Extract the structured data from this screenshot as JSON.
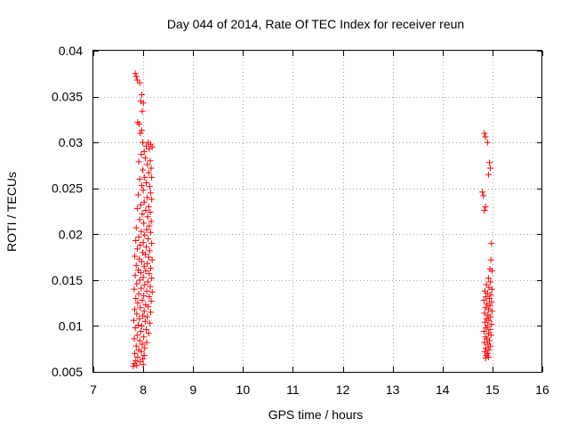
{
  "chart_data": {
    "type": "scatter",
    "title": "Day 044 of 2014, Rate Of TEC Index for receiver reun",
    "xlabel": "GPS time / hours",
    "ylabel": "ROTI / TECUs",
    "xlim": [
      7,
      16
    ],
    "ylim": [
      0.005,
      0.04
    ],
    "xticks": [
      7,
      8,
      9,
      10,
      11,
      12,
      13,
      14,
      15,
      16
    ],
    "xtick_labels": [
      "7",
      "8",
      "9",
      "10",
      "11",
      "12",
      "13",
      "14",
      "15",
      "16"
    ],
    "yticks": [
      0.005,
      0.01,
      0.015,
      0.02,
      0.025,
      0.03,
      0.035,
      0.04
    ],
    "ytick_labels": [
      "0.005",
      "0.01",
      "0.015",
      "0.02",
      "0.025",
      "0.03",
      "0.035",
      "0.04"
    ],
    "grid": true,
    "marker": "plus",
    "color": "#ff0000",
    "series": [
      {
        "name": "ROTI",
        "points": [
          [
            7.84,
            0.0375
          ],
          [
            7.86,
            0.0372
          ],
          [
            7.88,
            0.0368
          ],
          [
            7.93,
            0.0365
          ],
          [
            7.97,
            0.0352
          ],
          [
            8.0,
            0.0343
          ],
          [
            7.95,
            0.0345
          ],
          [
            7.98,
            0.0334
          ],
          [
            7.92,
            0.032
          ],
          [
            7.89,
            0.0322
          ],
          [
            7.97,
            0.0313
          ],
          [
            7.94,
            0.031
          ],
          [
            7.99,
            0.03
          ],
          [
            8.1,
            0.03
          ],
          [
            8.15,
            0.0298
          ],
          [
            8.06,
            0.0296
          ],
          [
            8.12,
            0.0293
          ],
          [
            8.02,
            0.029
          ],
          [
            8.18,
            0.0295
          ],
          [
            7.96,
            0.0287
          ],
          [
            8.04,
            0.0283
          ],
          [
            8.14,
            0.028
          ],
          [
            7.91,
            0.0279
          ],
          [
            8.08,
            0.0276
          ],
          [
            8.16,
            0.0272
          ],
          [
            7.99,
            0.027
          ],
          [
            8.11,
            0.0267
          ],
          [
            8.03,
            0.0262
          ],
          [
            8.17,
            0.0262
          ],
          [
            7.93,
            0.026
          ],
          [
            8.06,
            0.0256
          ],
          [
            7.97,
            0.0253
          ],
          [
            8.13,
            0.0252
          ],
          [
            8.0,
            0.0248
          ],
          [
            8.15,
            0.0245
          ],
          [
            7.9,
            0.0243
          ],
          [
            8.08,
            0.024
          ],
          [
            8.17,
            0.0238
          ],
          [
            8.02,
            0.0235
          ],
          [
            7.95,
            0.0232
          ],
          [
            8.11,
            0.023
          ],
          [
            7.88,
            0.0228
          ],
          [
            8.05,
            0.0226
          ],
          [
            8.14,
            0.0224
          ],
          [
            7.98,
            0.0222
          ],
          [
            8.09,
            0.0219
          ],
          [
            7.93,
            0.0216
          ],
          [
            8.16,
            0.0214
          ],
          [
            8.01,
            0.0212
          ],
          [
            8.12,
            0.0209
          ],
          [
            7.86,
            0.0207
          ],
          [
            8.07,
            0.0205
          ],
          [
            7.96,
            0.0203
          ],
          [
            8.15,
            0.0202
          ],
          [
            8.03,
            0.0199
          ],
          [
            7.91,
            0.0197
          ],
          [
            8.1,
            0.0195
          ],
          [
            7.85,
            0.0193
          ],
          [
            8.0,
            0.0191
          ],
          [
            8.17,
            0.019
          ],
          [
            7.94,
            0.0188
          ],
          [
            8.06,
            0.0186
          ],
          [
            7.88,
            0.0184
          ],
          [
            8.13,
            0.0182
          ],
          [
            7.99,
            0.018
          ],
          [
            8.04,
            0.0178
          ],
          [
            7.83,
            0.0176
          ],
          [
            8.11,
            0.0175
          ],
          [
            7.92,
            0.0173
          ],
          [
            8.18,
            0.0172
          ],
          [
            7.97,
            0.017
          ],
          [
            8.08,
            0.0168
          ],
          [
            7.86,
            0.0166
          ],
          [
            8.02,
            0.0165
          ],
          [
            8.15,
            0.0163
          ],
          [
            7.9,
            0.0161
          ],
          [
            8.05,
            0.016
          ],
          [
            7.95,
            0.0158
          ],
          [
            8.12,
            0.0157
          ],
          [
            7.84,
            0.0155
          ],
          [
            8.0,
            0.0153
          ],
          [
            8.17,
            0.0152
          ],
          [
            7.93,
            0.015
          ],
          [
            8.09,
            0.0148
          ],
          [
            7.87,
            0.0146
          ],
          [
            8.03,
            0.0145
          ],
          [
            8.14,
            0.0143
          ],
          [
            7.96,
            0.0141
          ],
          [
            7.82,
            0.014
          ],
          [
            8.07,
            0.0138
          ],
          [
            8.18,
            0.0137
          ],
          [
            7.91,
            0.0135
          ],
          [
            8.01,
            0.0133
          ],
          [
            8.12,
            0.0132
          ],
          [
            7.85,
            0.013
          ],
          [
            7.98,
            0.0128
          ],
          [
            8.16,
            0.0127
          ],
          [
            7.89,
            0.0125
          ],
          [
            8.05,
            0.0123
          ],
          [
            8.1,
            0.0121
          ],
          [
            7.94,
            0.012
          ],
          [
            7.83,
            0.0118
          ],
          [
            8.02,
            0.0116
          ],
          [
            8.15,
            0.0115
          ],
          [
            7.87,
            0.0113
          ],
          [
            7.99,
            0.0111
          ],
          [
            8.08,
            0.011
          ],
          [
            7.92,
            0.0108
          ],
          [
            7.81,
            0.0106
          ],
          [
            8.04,
            0.0105
          ],
          [
            8.13,
            0.0103
          ],
          [
            7.9,
            0.0101
          ],
          [
            7.97,
            0.01
          ],
          [
            7.84,
            0.0098
          ],
          [
            8.06,
            0.0096
          ],
          [
            7.95,
            0.0094
          ],
          [
            8.11,
            0.0092
          ],
          [
            7.88,
            0.009
          ],
          [
            8.01,
            0.0088
          ],
          [
            7.82,
            0.0086
          ],
          [
            7.93,
            0.0084
          ],
          [
            8.07,
            0.0082
          ],
          [
            7.98,
            0.008
          ],
          [
            7.86,
            0.0078
          ],
          [
            8.03,
            0.0076
          ],
          [
            7.91,
            0.0074
          ],
          [
            7.96,
            0.0072
          ],
          [
            7.83,
            0.007
          ],
          [
            8.02,
            0.0068
          ],
          [
            7.89,
            0.0066
          ],
          [
            7.99,
            0.0064
          ],
          [
            7.85,
            0.0062
          ],
          [
            7.94,
            0.0061
          ],
          [
            7.82,
            0.0059
          ],
          [
            8.0,
            0.0058
          ],
          [
            7.87,
            0.0057
          ],
          [
            7.8,
            0.0056
          ],
          [
            14.84,
            0.031
          ],
          [
            14.86,
            0.0306
          ],
          [
            14.9,
            0.03
          ],
          [
            14.94,
            0.0278
          ],
          [
            14.96,
            0.0272
          ],
          [
            14.92,
            0.0265
          ],
          [
            14.8,
            0.0246
          ],
          [
            14.82,
            0.0242
          ],
          [
            14.86,
            0.023
          ],
          [
            14.84,
            0.0226
          ],
          [
            14.98,
            0.019
          ],
          [
            14.97,
            0.0172
          ],
          [
            14.95,
            0.0162
          ],
          [
            14.99,
            0.016
          ],
          [
            14.92,
            0.0152
          ],
          [
            14.96,
            0.0148
          ],
          [
            14.88,
            0.0145
          ],
          [
            14.93,
            0.0142
          ],
          [
            14.99,
            0.014
          ],
          [
            14.85,
            0.0138
          ],
          [
            14.9,
            0.0136
          ],
          [
            14.97,
            0.0134
          ],
          [
            14.87,
            0.0132
          ],
          [
            14.94,
            0.013
          ],
          [
            14.83,
            0.0128
          ],
          [
            14.98,
            0.0126
          ],
          [
            14.89,
            0.0124
          ],
          [
            14.95,
            0.0122
          ],
          [
            14.86,
            0.012
          ],
          [
            14.92,
            0.0118
          ],
          [
            14.99,
            0.0116
          ],
          [
            14.84,
            0.0114
          ],
          [
            14.91,
            0.0112
          ],
          [
            14.96,
            0.011
          ],
          [
            14.88,
            0.0108
          ],
          [
            14.93,
            0.0106
          ],
          [
            14.85,
            0.0104
          ],
          [
            14.98,
            0.0102
          ],
          [
            14.9,
            0.01
          ],
          [
            14.87,
            0.0098
          ],
          [
            14.95,
            0.0096
          ],
          [
            14.83,
            0.0094
          ],
          [
            14.92,
            0.0092
          ],
          [
            14.97,
            0.009
          ],
          [
            14.86,
            0.0088
          ],
          [
            14.89,
            0.0086
          ],
          [
            14.94,
            0.0084
          ],
          [
            14.84,
            0.0082
          ],
          [
            14.91,
            0.008
          ],
          [
            14.96,
            0.0078
          ],
          [
            14.87,
            0.0076
          ],
          [
            14.93,
            0.0074
          ],
          [
            14.85,
            0.0072
          ],
          [
            14.9,
            0.007
          ],
          [
            14.88,
            0.0068
          ],
          [
            14.92,
            0.0066
          ],
          [
            14.86,
            0.0065
          ]
        ]
      }
    ]
  }
}
